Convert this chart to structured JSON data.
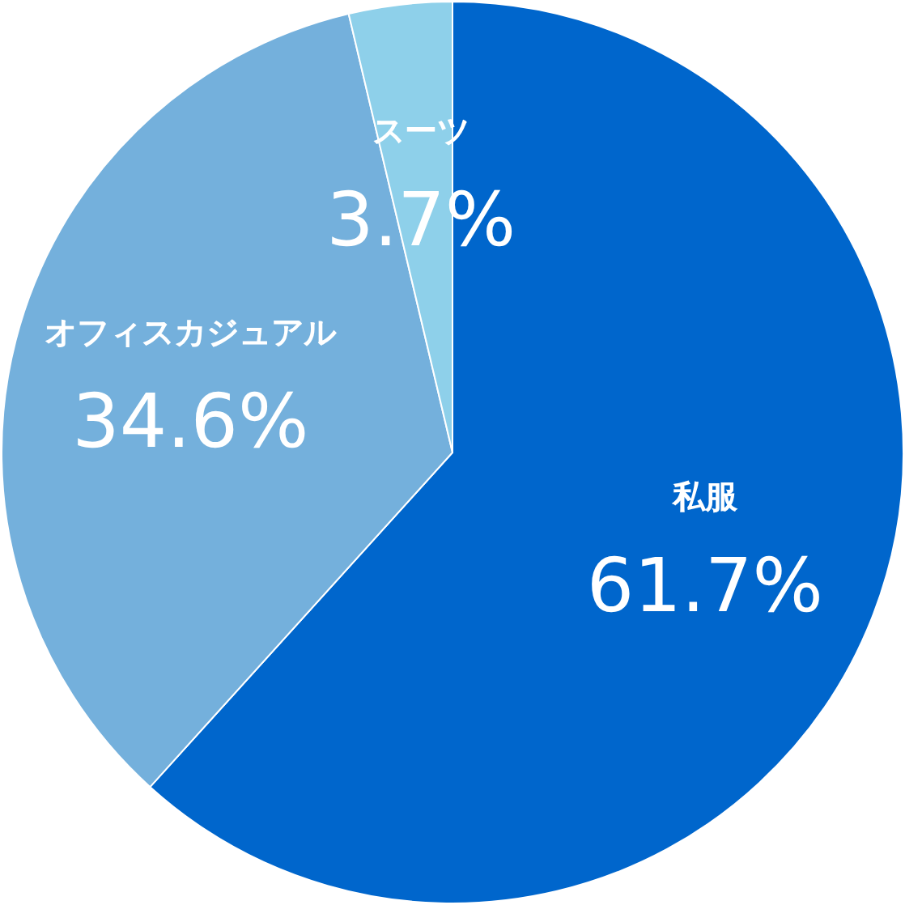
{
  "chart_data": {
    "type": "pie",
    "categories": [
      "私服",
      "オフィスカジュアル",
      "スーツ"
    ],
    "values": [
      61.7,
      34.6,
      3.7
    ],
    "colors": [
      "#0066cc",
      "#74b0dc",
      "#8ed0ea"
    ],
    "value_labels": [
      "61.7%",
      "34.6%",
      "3.7%"
    ],
    "legend": false
  }
}
